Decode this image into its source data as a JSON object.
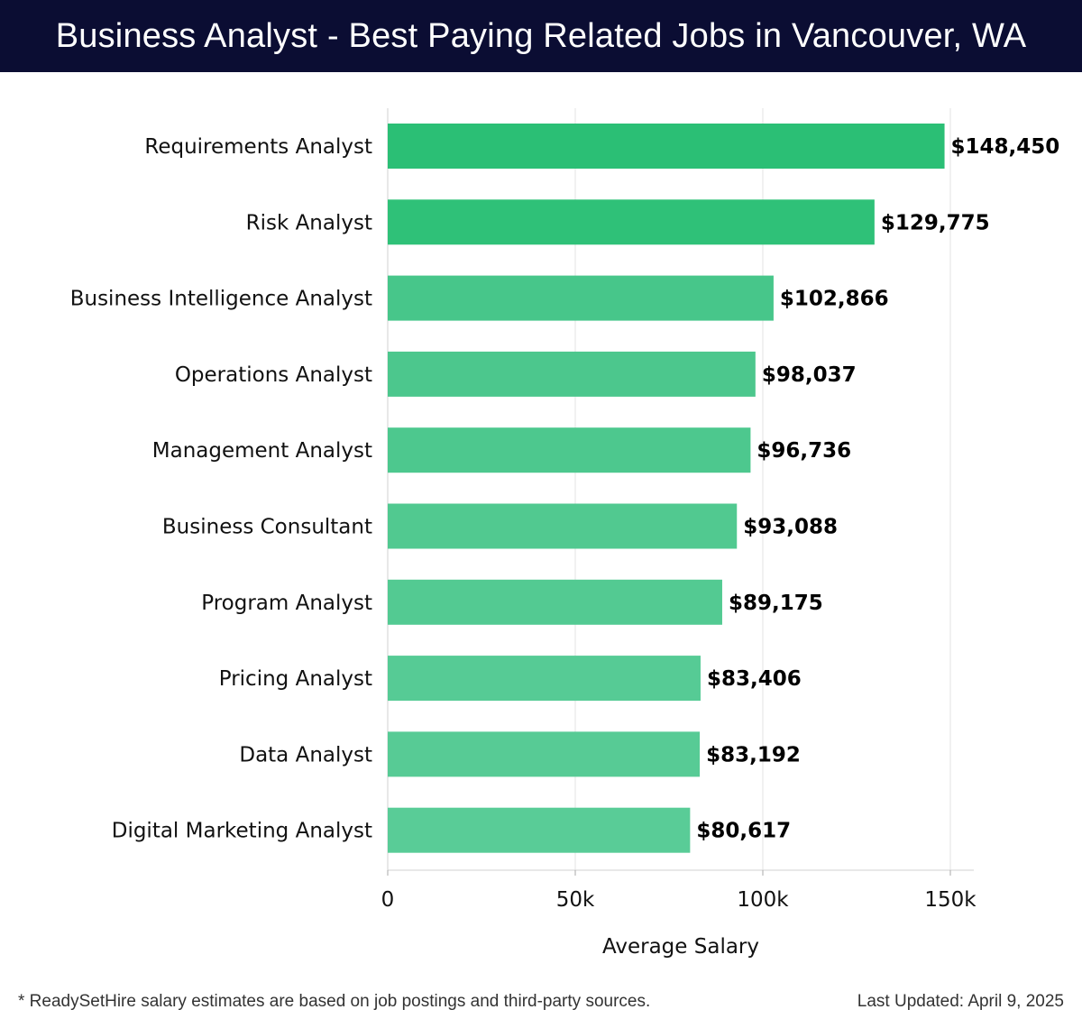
{
  "header": {
    "title": "Business Analyst - Best Paying Related Jobs in Vancouver, WA"
  },
  "chart_data": {
    "type": "bar",
    "orientation": "horizontal",
    "categories": [
      "Requirements Analyst",
      "Risk Analyst",
      "Business Intelligence Analyst",
      "Operations Analyst",
      "Management Analyst",
      "Business Consultant",
      "Program Analyst",
      "Pricing Analyst",
      "Data Analyst",
      "Digital Marketing Analyst"
    ],
    "values": [
      148450,
      129775,
      102866,
      98037,
      96736,
      93088,
      89175,
      83406,
      83192,
      80617
    ],
    "value_labels": [
      "$148,450",
      "$129,775",
      "$102,866",
      "$98,037",
      "$96,736",
      "$93,088",
      "$89,175",
      "$83,406",
      "$83,192",
      "$80,617"
    ],
    "xlabel": "Average Salary",
    "ylabel": "",
    "xlim": [
      0,
      156000
    ],
    "xticks": [
      0,
      50000,
      100000,
      150000
    ],
    "xtick_labels": [
      "0",
      "50k",
      "100k",
      "150k"
    ],
    "grid": true,
    "colors": [
      "#2bbf75",
      "#2fc178",
      "#47c68a",
      "#4cc78d",
      "#4dc88e",
      "#51c990",
      "#53ca92",
      "#56cb95",
      "#57cb95",
      "#59cc97"
    ]
  },
  "footer": {
    "note": "* ReadySetHire salary estimates are based on job postings and third-party sources.",
    "updated": "Last Updated: April 9, 2025"
  }
}
